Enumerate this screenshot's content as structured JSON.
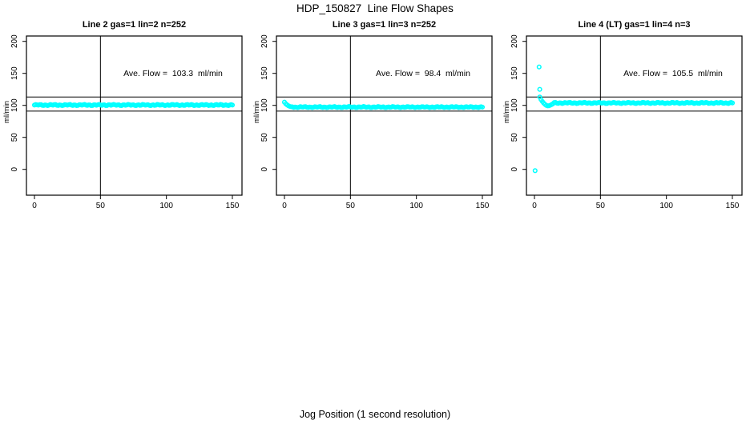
{
  "page": {
    "title": "HDP_150827  Line Flow Shapes",
    "xlabel": "Jog Position (1 second resolution)",
    "ylabel": "ml/min",
    "background": "#ffffff"
  },
  "colors": {
    "points": "#00ffff",
    "axis": "#000000",
    "text": "#000000"
  },
  "chart_data": {
    "type": "scatter",
    "title": "HDP_150827  Line Flow Shapes",
    "xlabel": "Jog Position (1 second resolution)",
    "ylabel": "ml/min",
    "xlim": [
      0,
      150
    ],
    "ylim": [
      0,
      200
    ],
    "x_ticks": [
      0,
      50,
      100,
      150
    ],
    "y_ticks": [
      0,
      50,
      100,
      150,
      200
    ],
    "reference_vline_x": 50,
    "reference_hlines": [
      113,
      91
    ],
    "grid": false,
    "point_color": "#00ffff",
    "panels": [
      {
        "title": "Line 2 gas=1 lin=2 n=252",
        "annotation": "Ave. Flow =  103.3  ml/min",
        "ave_flow": 103.3,
        "n": 252,
        "steady": {
          "x_start": 0,
          "x_end": 150,
          "step": 1,
          "level": 100.5,
          "amp": 1.0
        },
        "transient": [],
        "outliers": []
      },
      {
        "title": "Line 3 gas=1 lin=3 n=252",
        "annotation": "Ave. Flow =  98.4  ml/min",
        "ave_flow": 98.4,
        "n": 252,
        "steady": {
          "x_start": 7,
          "x_end": 150,
          "step": 1,
          "level": 97.3,
          "amp": 0.9
        },
        "transient": [
          [
            0,
            105.0
          ],
          [
            1,
            102.5
          ],
          [
            2,
            100.8
          ],
          [
            3,
            99.4
          ],
          [
            4,
            98.4
          ],
          [
            5,
            97.9
          ],
          [
            6,
            97.6
          ]
        ],
        "outliers": []
      },
      {
        "title": "Line 4 (LT) gas=1 lin=4 n=3",
        "annotation": "Ave. Flow =  105.5  ml/min",
        "ave_flow": 105.5,
        "n": 3,
        "steady": {
          "x_start": 15,
          "x_end": 150,
          "step": 1,
          "level": 103.8,
          "amp": 1.0
        },
        "transient": [
          [
            4,
            113
          ],
          [
            5,
            109
          ],
          [
            6,
            106
          ],
          [
            7,
            103.5
          ],
          [
            8,
            101.5
          ],
          [
            9,
            100
          ],
          [
            10,
            99.3
          ],
          [
            11,
            99.4
          ],
          [
            12,
            100.2
          ],
          [
            13,
            101.2
          ],
          [
            14,
            102.5
          ]
        ],
        "outliers": [
          [
            3.5,
            160
          ],
          [
            4,
            125
          ],
          [
            0.5,
            -2
          ]
        ]
      }
    ]
  }
}
